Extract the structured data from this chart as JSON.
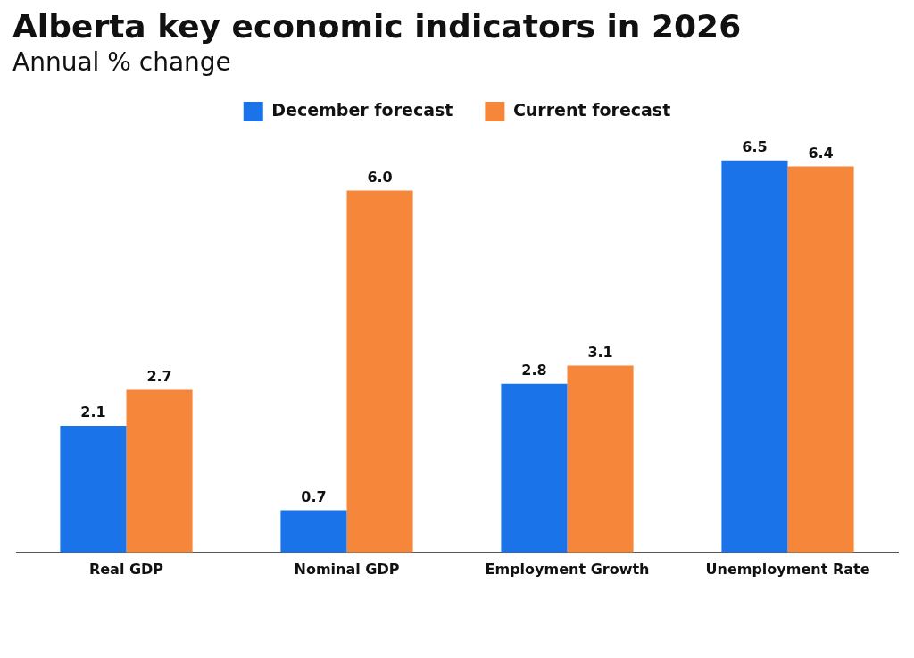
{
  "chart_data": {
    "type": "bar",
    "title": "Alberta key economic indicators in 2026",
    "subtitle": "Annual % change",
    "categories": [
      "Real GDP",
      "Nominal GDP",
      "Employment Growth",
      "Unemployment Rate"
    ],
    "series": [
      {
        "name": "December forecast",
        "color": "#1a73e8",
        "values": [
          2.1,
          0.7,
          2.8,
          6.5
        ],
        "value_labels": [
          "2.1",
          "0.7",
          "2.8",
          "6.5"
        ]
      },
      {
        "name": "Current forecast",
        "color": "#f5863a",
        "values": [
          2.7,
          6.0,
          3.1,
          6.4
        ],
        "value_labels": [
          "2.7",
          "6.0",
          "3.1",
          "6.4"
        ]
      }
    ],
    "legend": "top",
    "grid": false
  }
}
